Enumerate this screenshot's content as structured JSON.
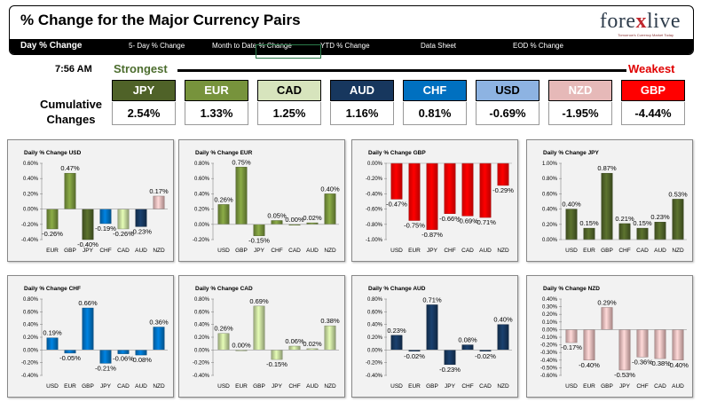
{
  "header": {
    "title": "% Change for the Major Currency Pairs",
    "logo_pre": "fore",
    "logo_x": "x",
    "logo_post": "live",
    "tagline": "Tomorrow's Currency Market Today",
    "tabs": [
      {
        "label": "Day % Change"
      },
      {
        "label": "5- Day % Change"
      },
      {
        "label": "Month to Date % Change"
      },
      {
        "label": "YTD % Change"
      },
      {
        "label": "Data Sheet"
      },
      {
        "label": "EOD % Change"
      }
    ]
  },
  "ranking": {
    "time": "7:56 AM",
    "strongest_label": "Strongest",
    "weakest_label": "Weakest",
    "cumulative_label_1": "Cumulative",
    "cumulative_label_2": "Changes",
    "currencies": [
      {
        "code": "JPY",
        "value": "2.54%",
        "bg": "#4f6228",
        "fg": "#ffffff"
      },
      {
        "code": "EUR",
        "value": "1.33%",
        "bg": "#77933c",
        "fg": "#ffffff"
      },
      {
        "code": "CAD",
        "value": "1.25%",
        "bg": "#d7e4bd",
        "fg": "#000000"
      },
      {
        "code": "AUD",
        "value": "1.16%",
        "bg": "#17375e",
        "fg": "#ffffff"
      },
      {
        "code": "CHF",
        "value": "0.81%",
        "bg": "#0070c0",
        "fg": "#ffffff"
      },
      {
        "code": "USD",
        "value": "-0.69%",
        "bg": "#8db3e2",
        "fg": "#000000"
      },
      {
        "code": "NZD",
        "value": "-1.95%",
        "bg": "#e6b9b8",
        "fg": "#ffffff"
      },
      {
        "code": "GBP",
        "value": "-4.44%",
        "bg": "#ff0000",
        "fg": "#ffffff"
      }
    ]
  },
  "chart_data": [
    {
      "type": "bar",
      "title": "Daily % Change USD",
      "categories": [
        "EUR",
        "GBP",
        "JPY",
        "CHF",
        "CAD",
        "AUD",
        "NZD"
      ],
      "values": [
        -0.26,
        0.47,
        -0.4,
        -0.19,
        -0.26,
        -0.23,
        0.17
      ],
      "labels": [
        "-0.26%",
        "0.47%",
        "-0.40%",
        "-0.19%",
        "-0.26%",
        "-0.23%",
        "0.17%"
      ],
      "ylim": [
        -0.4,
        0.6
      ],
      "ticks": [
        0.6,
        0.4,
        0.2,
        0.0,
        -0.2,
        -0.4
      ],
      "tick_labels": [
        "0.60%",
        "0.40%",
        "0.20%",
        "0.00%",
        "-0.20%",
        "-0.40%"
      ],
      "colors": [
        "#77933c",
        "#77933c",
        "#4f6228",
        "#0070c0",
        "#c3d69b",
        "#17375e",
        "#e6b9b8"
      ]
    },
    {
      "type": "bar",
      "title": "Daily % Change EUR",
      "categories": [
        "USD",
        "GBP",
        "JPY",
        "CHF",
        "CAD",
        "AUD",
        "NZD"
      ],
      "values": [
        0.26,
        0.75,
        -0.15,
        0.05,
        0.0,
        0.02,
        0.4
      ],
      "labels": [
        "0.26%",
        "0.75%",
        "-0.15%",
        "0.05%",
        "0.00%",
        "0.02%",
        "0.40%"
      ],
      "ylim": [
        -0.2,
        0.8
      ],
      "ticks": [
        0.8,
        0.6,
        0.4,
        0.2,
        0.0,
        -0.2
      ],
      "tick_labels": [
        "0.80%",
        "0.60%",
        "0.40%",
        "0.20%",
        "0.00%",
        "-0.20%"
      ],
      "colors": [
        "#77933c",
        "#77933c",
        "#77933c",
        "#77933c",
        "#77933c",
        "#77933c",
        "#77933c"
      ]
    },
    {
      "type": "bar",
      "title": "Daily % Change GBP",
      "categories": [
        "USD",
        "EUR",
        "JPY",
        "CHF",
        "CAD",
        "AUD",
        "NZD"
      ],
      "values": [
        -0.47,
        -0.75,
        -0.87,
        -0.66,
        -0.69,
        -0.71,
        -0.29
      ],
      "labels": [
        "-0.47%",
        "-0.75%",
        "-0.87%",
        "-0.66%",
        "-0.69%",
        "-0.71%",
        "-0.29%"
      ],
      "ylim": [
        -1.0,
        0.0
      ],
      "ticks": [
        0.0,
        -0.2,
        -0.4,
        -0.6,
        -0.8,
        -1.0
      ],
      "tick_labels": [
        "0.00%",
        "-0.20%",
        "-0.40%",
        "-0.60%",
        "-0.80%",
        "-1.00%"
      ],
      "colors": [
        "#ff0000",
        "#ff0000",
        "#ff0000",
        "#ff0000",
        "#ff0000",
        "#ff0000",
        "#ff0000"
      ]
    },
    {
      "type": "bar",
      "title": "Daily % Change JPY",
      "categories": [
        "USD",
        "EUR",
        "GBP",
        "CHF",
        "CAD",
        "AUD",
        "NZD"
      ],
      "values": [
        0.4,
        0.15,
        0.87,
        0.21,
        0.15,
        0.23,
        0.53
      ],
      "labels": [
        "0.40%",
        "0.15%",
        "0.87%",
        "0.21%",
        "0.15%",
        "0.23%",
        "0.53%"
      ],
      "ylim": [
        0.0,
        1.0
      ],
      "ticks": [
        1.0,
        0.8,
        0.6,
        0.4,
        0.2,
        0.0
      ],
      "tick_labels": [
        "1.00%",
        "0.80%",
        "0.60%",
        "0.40%",
        "0.20%",
        "0.00%"
      ],
      "colors": [
        "#4f6228",
        "#4f6228",
        "#4f6228",
        "#4f6228",
        "#4f6228",
        "#4f6228",
        "#4f6228"
      ]
    },
    {
      "type": "bar",
      "title": "Daily % Change CHF",
      "categories": [
        "USD",
        "EUR",
        "GBP",
        "JPY",
        "CAD",
        "AUD",
        "NZD"
      ],
      "values": [
        0.19,
        -0.05,
        0.66,
        -0.21,
        -0.06,
        -0.08,
        0.36
      ],
      "labels": [
        "0.19%",
        "-0.05%",
        "0.66%",
        "-0.21%",
        "-0.06%",
        "-0.08%",
        "0.36%"
      ],
      "ylim": [
        -0.4,
        0.8
      ],
      "ticks": [
        0.8,
        0.6,
        0.4,
        0.2,
        0.0,
        -0.2,
        -0.4
      ],
      "tick_labels": [
        "0.80%",
        "0.60%",
        "0.40%",
        "0.20%",
        "0.00%",
        "-0.20%",
        "-0.40%"
      ],
      "colors": [
        "#0070c0",
        "#0070c0",
        "#0070c0",
        "#0070c0",
        "#0070c0",
        "#0070c0",
        "#0070c0"
      ]
    },
    {
      "type": "bar",
      "title": "Daily % Change CAD",
      "categories": [
        "USD",
        "EUR",
        "GBP",
        "JPY",
        "CHF",
        "AUD",
        "NZD"
      ],
      "values": [
        0.26,
        0.0,
        0.69,
        -0.15,
        0.06,
        0.02,
        0.38
      ],
      "labels": [
        "0.26%",
        "0.00%",
        "0.69%",
        "-0.15%",
        "0.06%",
        "0.02%",
        "0.38%"
      ],
      "ylim": [
        -0.4,
        0.8
      ],
      "ticks": [
        0.8,
        0.6,
        0.4,
        0.2,
        0.0,
        -0.2,
        -0.4
      ],
      "tick_labels": [
        "0.80%",
        "0.60%",
        "0.40%",
        "0.20%",
        "0.00%",
        "-0.20%",
        "-0.40%"
      ],
      "colors": [
        "#c3d69b",
        "#c3d69b",
        "#c3d69b",
        "#c3d69b",
        "#c3d69b",
        "#c3d69b",
        "#c3d69b"
      ]
    },
    {
      "type": "bar",
      "title": "Daily % Change AUD",
      "categories": [
        "USD",
        "EUR",
        "GBP",
        "JPY",
        "CHF",
        "CAD",
        "NZD"
      ],
      "values": [
        0.23,
        -0.02,
        0.71,
        -0.23,
        0.08,
        -0.02,
        0.4
      ],
      "labels": [
        "0.23%",
        "-0.02%",
        "0.71%",
        "-0.23%",
        "0.08%",
        "-0.02%",
        "0.40%"
      ],
      "ylim": [
        -0.4,
        0.8
      ],
      "ticks": [
        0.8,
        0.6,
        0.4,
        0.2,
        0.0,
        -0.2,
        -0.4
      ],
      "tick_labels": [
        "0.80%",
        "0.60%",
        "0.40%",
        "0.20%",
        "0.00%",
        "-0.20%",
        "-0.40%"
      ],
      "colors": [
        "#17375e",
        "#17375e",
        "#17375e",
        "#17375e",
        "#17375e",
        "#17375e",
        "#17375e"
      ]
    },
    {
      "type": "bar",
      "title": "Daily % Change NZD",
      "categories": [
        "USD",
        "EUR",
        "GBP",
        "JPY",
        "CHF",
        "CAD",
        "AUD"
      ],
      "values": [
        -0.17,
        -0.4,
        0.29,
        -0.53,
        -0.36,
        -0.38,
        -0.4
      ],
      "labels": [
        "-0.17%",
        "-0.40%",
        "0.29%",
        "-0.53%",
        "-0.36%",
        "-0.38%",
        "-0.40%"
      ],
      "ylim": [
        -0.6,
        0.4
      ],
      "ticks": [
        0.4,
        0.3,
        0.2,
        0.1,
        0.0,
        -0.1,
        -0.2,
        -0.3,
        -0.4,
        -0.5,
        -0.6
      ],
      "tick_labels": [
        "0.40%",
        "0.30%",
        "0.20%",
        "0.10%",
        "0.00%",
        "-0.10%",
        "-0.20%",
        "-0.30%",
        "-0.40%",
        "-0.50%",
        "-0.60%"
      ],
      "colors": [
        "#e6b9b8",
        "#e6b9b8",
        "#e6b9b8",
        "#e6b9b8",
        "#e6b9b8",
        "#e6b9b8",
        "#e6b9b8"
      ]
    }
  ]
}
